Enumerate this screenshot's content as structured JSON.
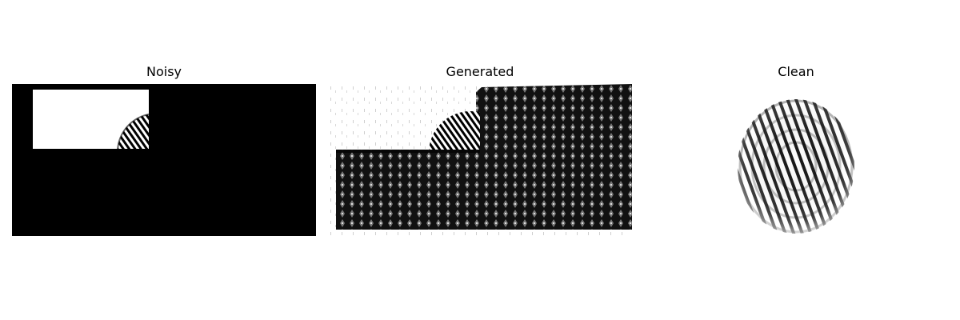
{
  "figure": {
    "panels": [
      {
        "title": "Noisy"
      },
      {
        "title": "Generated"
      },
      {
        "title": "Clean"
      }
    ]
  },
  "colors": {
    "background": "#ffffff",
    "ink": "#000000",
    "mask": "#ffffff"
  }
}
